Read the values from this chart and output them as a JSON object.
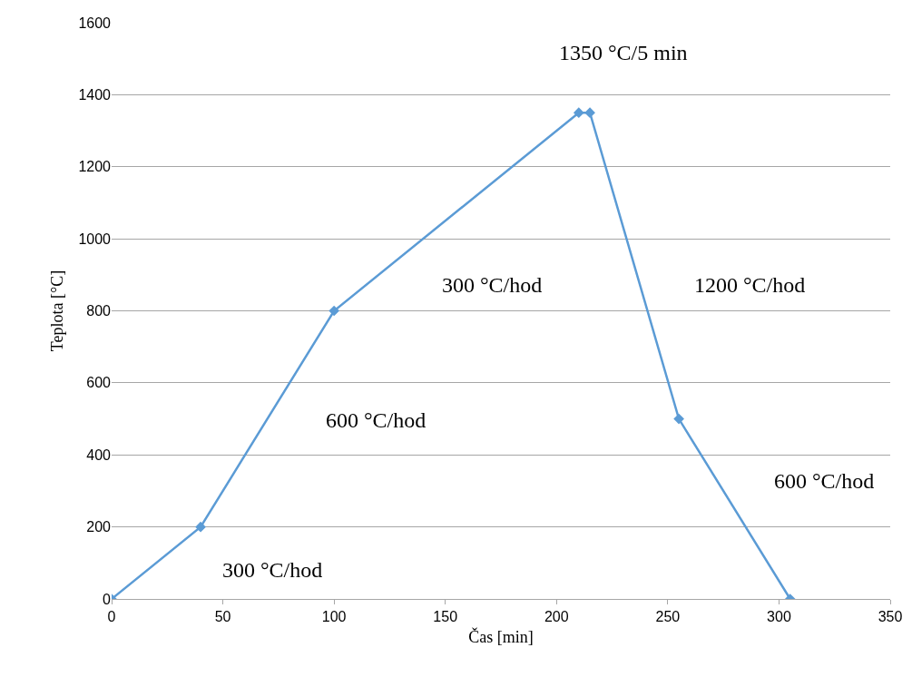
{
  "chart_data": {
    "type": "line",
    "xlabel": "Čas [min]",
    "ylabel": "Teplota [°C]",
    "x": [
      0,
      40,
      100,
      210,
      215,
      255,
      305
    ],
    "series": [
      {
        "color": "#5b9bd5",
        "values": [
          0,
          200,
          800,
          1350,
          1350,
          500,
          0
        ]
      }
    ],
    "xlim": [
      0,
      350
    ],
    "xticks": [
      0,
      50,
      100,
      150,
      200,
      250,
      300,
      350
    ],
    "ylim": [
      0,
      1600
    ],
    "yticks": [
      0,
      200,
      400,
      600,
      800,
      1000,
      1200,
      1400,
      1600
    ],
    "grid": "y",
    "marker": "diamond",
    "line_style": "solid",
    "annotations": [
      "1350 °C/5 min",
      "300 °C/hod",
      "1200 °C/hod",
      "600 °C/hod",
      "600 °C/hod",
      "300 °C/hod"
    ]
  }
}
